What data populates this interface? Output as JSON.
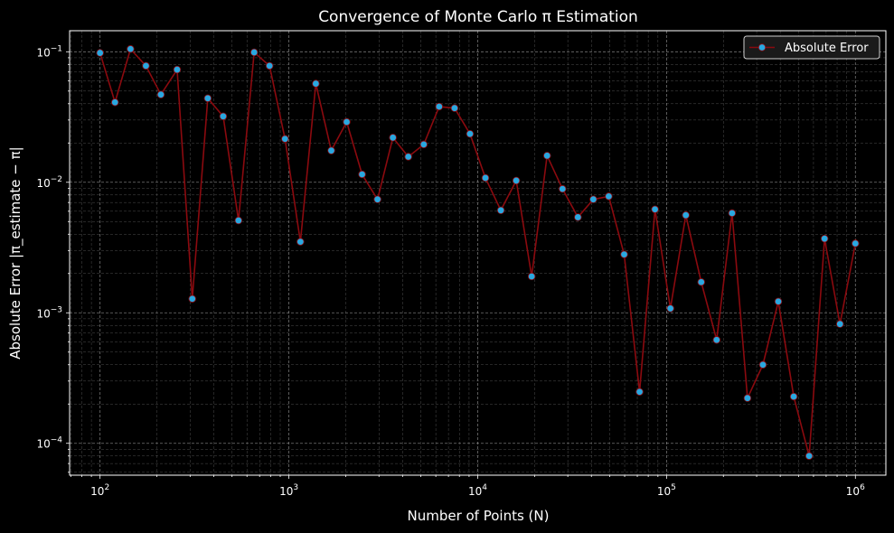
{
  "chart_data": {
    "type": "line",
    "title": "Convergence of Monte Carlo π Estimation",
    "xlabel": "Number of Points (N)",
    "ylabel": "Absolute Error |π_estimate − π|",
    "xscale": "log",
    "yscale": "log",
    "xlim": [
      69,
      1450000
    ],
    "ylim": [
      5.7e-05,
      0.145
    ],
    "grid": true,
    "legend_position": "top-right",
    "series": [
      {
        "name": "Absolute Error",
        "line_color": "#8b0a0f",
        "marker_color": "#29a8e0",
        "x": [
          100,
          120,
          145,
          175,
          210,
          256,
          308,
          372,
          449,
          541,
          655,
          790,
          954,
          1151,
          1389,
          1677,
          2024,
          2442,
          2947,
          3556,
          4291,
          5179,
          6250,
          7543,
          9102,
          10985,
          13257,
          15999,
          19307,
          23300,
          28118,
          33932,
          40949,
          49417,
          59636,
          71968,
          86851,
          104811,
          126485,
          152641,
          184206,
          222300,
          268270,
          323746,
          390694,
          471487,
          568987,
          686649,
          828643,
          1000000
        ],
        "values": [
          0.098,
          0.041,
          0.105,
          0.078,
          0.047,
          0.073,
          0.00128,
          0.044,
          0.032,
          0.0051,
          0.099,
          0.078,
          0.0215,
          0.0035,
          0.057,
          0.0175,
          0.029,
          0.0115,
          0.0074,
          0.022,
          0.0157,
          0.0195,
          0.038,
          0.037,
          0.0235,
          0.0108,
          0.0061,
          0.0103,
          0.0019,
          0.016,
          0.0089,
          0.0054,
          0.0074,
          0.0078,
          0.0028,
          0.000248,
          0.0062,
          0.00108,
          0.0056,
          0.00172,
          0.00062,
          0.0058,
          0.000222,
          0.0004,
          0.00122,
          0.000228,
          8e-05,
          0.0037,
          0.00082,
          0.0034
        ]
      }
    ],
    "xticks": [
      {
        "value": 100,
        "mantissa": "10",
        "exp": "2"
      },
      {
        "value": 1000,
        "mantissa": "10",
        "exp": "3"
      },
      {
        "value": 10000,
        "mantissa": "10",
        "exp": "4"
      },
      {
        "value": 100000,
        "mantissa": "10",
        "exp": "5"
      },
      {
        "value": 1000000,
        "mantissa": "10",
        "exp": "6"
      }
    ],
    "yticks": [
      {
        "value": 0.1,
        "mantissa": "10",
        "exp": "−1"
      },
      {
        "value": 0.01,
        "mantissa": "10",
        "exp": "−2"
      },
      {
        "value": 0.001,
        "mantissa": "10",
        "exp": "−3"
      },
      {
        "value": 0.0001,
        "mantissa": "10",
        "exp": "−4"
      }
    ]
  },
  "colors": {
    "background": "#000000",
    "axis": "#ffffff",
    "grid": "#9a9a9a",
    "legend_bg": "#1a1a1a",
    "legend_border": "#cfcfcf"
  }
}
